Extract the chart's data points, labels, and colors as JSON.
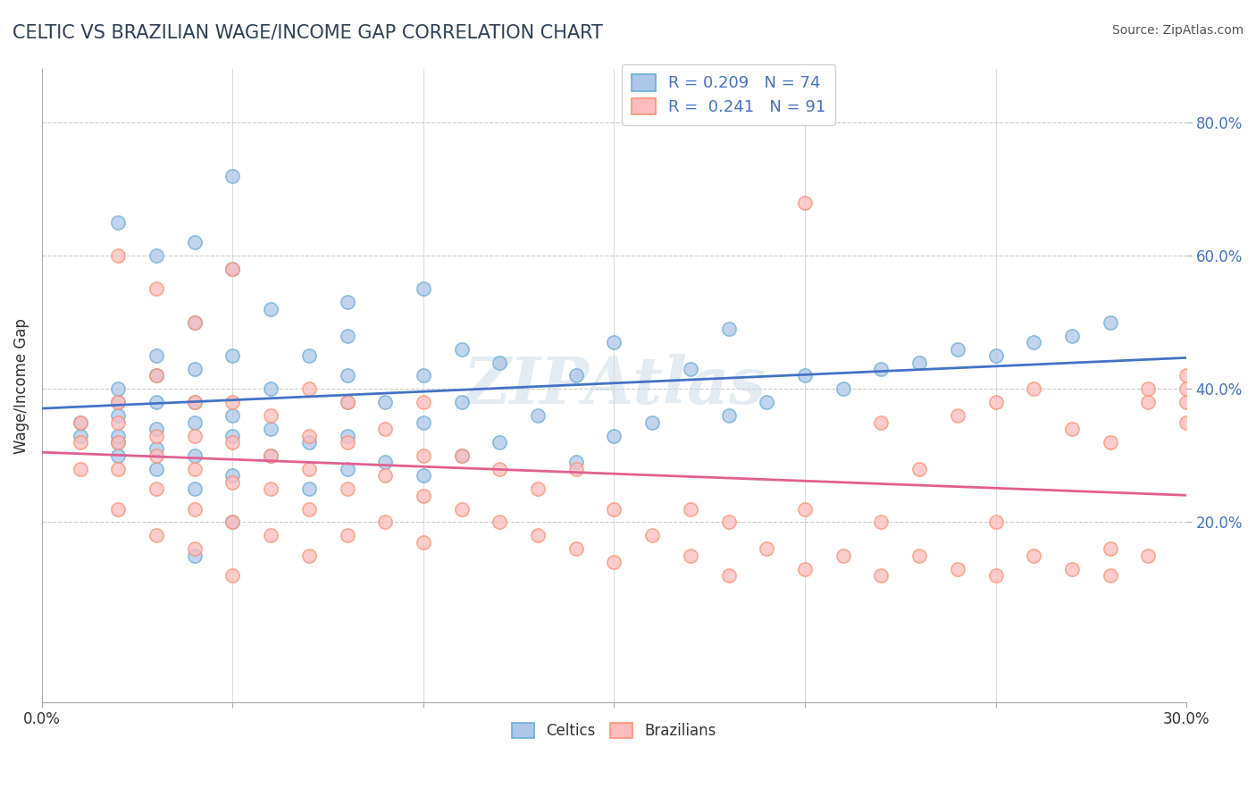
{
  "title": "CELTIC VS BRAZILIAN WAGE/INCOME GAP CORRELATION CHART",
  "source": "Source: ZipAtlas.com",
  "xlabel": "",
  "ylabel": "Wage/Income Gap",
  "xlim": [
    0.0,
    0.3
  ],
  "ylim": [
    -0.07,
    0.88
  ],
  "xticks": [
    0.0,
    0.05,
    0.1,
    0.15,
    0.2,
    0.25,
    0.3
  ],
  "xticklabels": [
    "0.0%",
    "",
    "",
    "",
    "",
    "",
    "30.0%"
  ],
  "ytick_positions": [
    0.2,
    0.4,
    0.6,
    0.8
  ],
  "ytick_labels": [
    "20.0%",
    "40.0%",
    "60.0%",
    "80.0%"
  ],
  "celtic_color": "#6baed6",
  "celtic_color_fill": "#aec6e8",
  "brazilian_color": "#fc9272",
  "brazilian_color_fill": "#fdbdbd",
  "trend_blue": "#4472c4",
  "trend_pink": "#e06090",
  "R_celtic": 0.209,
  "N_celtic": 74,
  "R_brazilian": 0.241,
  "N_brazilian": 91,
  "watermark": "ZIPAtlas",
  "watermark_color": "#c8d8e8",
  "title_color": "#2e4057",
  "title_fontsize": 15,
  "axis_color": "#555555",
  "grid_color": "#cccccc",
  "background_color": "#ffffff",
  "celtics_scatter_x": [
    0.01,
    0.01,
    0.02,
    0.02,
    0.02,
    0.02,
    0.02,
    0.02,
    0.02,
    0.03,
    0.03,
    0.03,
    0.03,
    0.03,
    0.03,
    0.03,
    0.04,
    0.04,
    0.04,
    0.04,
    0.04,
    0.04,
    0.04,
    0.04,
    0.05,
    0.05,
    0.05,
    0.05,
    0.05,
    0.05,
    0.05,
    0.06,
    0.06,
    0.06,
    0.06,
    0.07,
    0.07,
    0.07,
    0.08,
    0.08,
    0.08,
    0.08,
    0.08,
    0.08,
    0.09,
    0.09,
    0.1,
    0.1,
    0.1,
    0.1,
    0.11,
    0.11,
    0.11,
    0.12,
    0.12,
    0.13,
    0.14,
    0.14,
    0.15,
    0.15,
    0.16,
    0.17,
    0.18,
    0.18,
    0.19,
    0.2,
    0.21,
    0.22,
    0.23,
    0.24,
    0.25,
    0.26,
    0.27,
    0.28
  ],
  "celtics_scatter_y": [
    0.33,
    0.35,
    0.3,
    0.32,
    0.33,
    0.36,
    0.38,
    0.4,
    0.65,
    0.28,
    0.31,
    0.34,
    0.38,
    0.42,
    0.45,
    0.6,
    0.15,
    0.25,
    0.3,
    0.35,
    0.38,
    0.43,
    0.5,
    0.62,
    0.2,
    0.27,
    0.33,
    0.36,
    0.45,
    0.58,
    0.72,
    0.3,
    0.34,
    0.4,
    0.52,
    0.25,
    0.32,
    0.45,
    0.28,
    0.33,
    0.38,
    0.42,
    0.48,
    0.53,
    0.29,
    0.38,
    0.27,
    0.35,
    0.42,
    0.55,
    0.3,
    0.38,
    0.46,
    0.32,
    0.44,
    0.36,
    0.29,
    0.42,
    0.33,
    0.47,
    0.35,
    0.43,
    0.36,
    0.49,
    0.38,
    0.42,
    0.4,
    0.43,
    0.44,
    0.46,
    0.45,
    0.47,
    0.48,
    0.5
  ],
  "brazilians_scatter_x": [
    0.01,
    0.01,
    0.01,
    0.02,
    0.02,
    0.02,
    0.02,
    0.02,
    0.02,
    0.03,
    0.03,
    0.03,
    0.03,
    0.03,
    0.03,
    0.04,
    0.04,
    0.04,
    0.04,
    0.04,
    0.04,
    0.05,
    0.05,
    0.05,
    0.05,
    0.05,
    0.05,
    0.06,
    0.06,
    0.06,
    0.06,
    0.07,
    0.07,
    0.07,
    0.07,
    0.07,
    0.08,
    0.08,
    0.08,
    0.08,
    0.09,
    0.09,
    0.09,
    0.1,
    0.1,
    0.1,
    0.1,
    0.11,
    0.11,
    0.12,
    0.12,
    0.13,
    0.13,
    0.14,
    0.14,
    0.15,
    0.15,
    0.16,
    0.17,
    0.17,
    0.18,
    0.18,
    0.19,
    0.2,
    0.2,
    0.21,
    0.22,
    0.22,
    0.23,
    0.24,
    0.25,
    0.25,
    0.26,
    0.27,
    0.28,
    0.28,
    0.29,
    0.2,
    0.22,
    0.23,
    0.24,
    0.25,
    0.26,
    0.27,
    0.28,
    0.29,
    0.29,
    0.3,
    0.3,
    0.3,
    0.3
  ],
  "brazilians_scatter_y": [
    0.28,
    0.32,
    0.35,
    0.22,
    0.28,
    0.32,
    0.35,
    0.38,
    0.6,
    0.18,
    0.25,
    0.3,
    0.33,
    0.42,
    0.55,
    0.16,
    0.22,
    0.28,
    0.33,
    0.38,
    0.5,
    0.12,
    0.2,
    0.26,
    0.32,
    0.38,
    0.58,
    0.18,
    0.25,
    0.3,
    0.36,
    0.15,
    0.22,
    0.28,
    0.33,
    0.4,
    0.18,
    0.25,
    0.32,
    0.38,
    0.2,
    0.27,
    0.34,
    0.17,
    0.24,
    0.3,
    0.38,
    0.22,
    0.3,
    0.2,
    0.28,
    0.18,
    0.25,
    0.16,
    0.28,
    0.14,
    0.22,
    0.18,
    0.15,
    0.22,
    0.12,
    0.2,
    0.16,
    0.13,
    0.22,
    0.15,
    0.12,
    0.2,
    0.15,
    0.13,
    0.12,
    0.2,
    0.15,
    0.13,
    0.12,
    0.16,
    0.15,
    0.68,
    0.35,
    0.28,
    0.36,
    0.38,
    0.4,
    0.34,
    0.32,
    0.38,
    0.4,
    0.35,
    0.38,
    0.4,
    0.42
  ]
}
